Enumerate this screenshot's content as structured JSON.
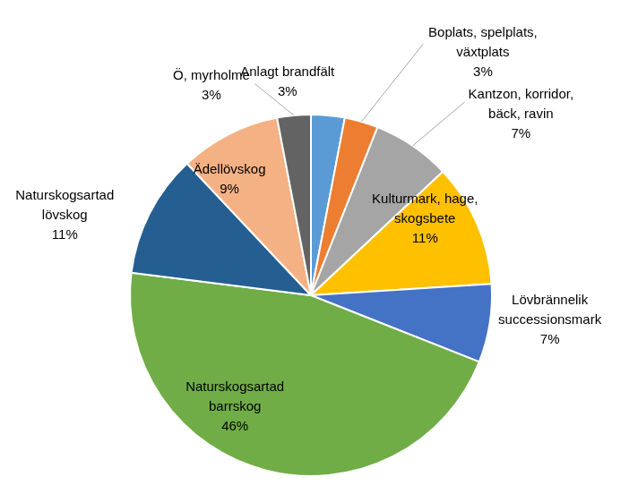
{
  "chart_data": {
    "type": "pie",
    "categories": [
      "Anlagt brandfält",
      "Boplats, spelplats, växtplats",
      "Kantzon, korridor, bäck, ravin",
      "Kulturmark, hage, skogsbete",
      "Lövbrännelik successionsmark",
      "Naturskogsartad barrskog",
      "Naturskogsartad lövskog",
      "Ädellövskog",
      "Ö, myrholme"
    ],
    "values": [
      3,
      3,
      7,
      11,
      7,
      46,
      11,
      9,
      3
    ],
    "value_labels": [
      "3%",
      "3%",
      "7%",
      "11%",
      "7%",
      "46%",
      "11%",
      "9%",
      "3%"
    ],
    "colors": [
      "#5b9bd5",
      "#ed7d31",
      "#a5a5a5",
      "#ffc000",
      "#4472c4",
      "#70ad47",
      "#255e91",
      "#f4b183",
      "#636363"
    ],
    "data_labels": true
  }
}
